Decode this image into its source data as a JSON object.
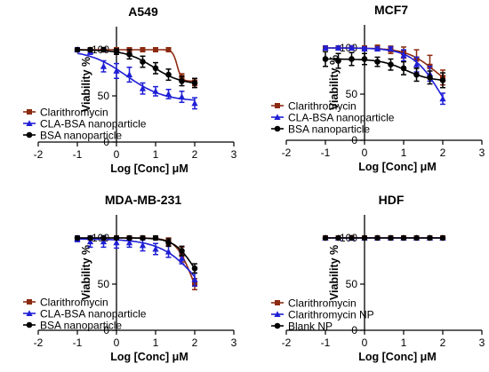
{
  "chart_data": [
    {
      "type": "line",
      "title": "A549",
      "xlabel": "Log [Conc] μM",
      "ylabel": "Viability %",
      "xlim": [
        -2,
        3
      ],
      "ylim": [
        0,
        125
      ],
      "xticks": [
        "-2",
        "-1",
        "0",
        "1",
        "2",
        "3"
      ],
      "yticks": [
        "0",
        "50",
        "100"
      ],
      "legend_position": "bottom-left",
      "x": [
        -1,
        -0.67,
        -0.33,
        0,
        0.33,
        0.67,
        1,
        1.33,
        1.67,
        2
      ],
      "series": [
        {
          "name": "Clarithromycin",
          "color": "#8b2a10",
          "marker": "square",
          "values": [
            100,
            100,
            100,
            100,
            100,
            100,
            100,
            100,
            70,
            65
          ],
          "error": [
            1,
            1,
            1,
            1,
            1,
            1,
            1,
            1,
            4,
            4
          ]
        },
        {
          "name": "CLA-BSA nanoparticle",
          "color": "#1f1fd6",
          "marker": "triangle",
          "values": [
            100,
            98,
            82,
            77,
            73,
            58,
            55,
            52,
            49,
            42
          ],
          "error": [
            2,
            3,
            6,
            8,
            8,
            6,
            5,
            5,
            6,
            6
          ]
        },
        {
          "name": "BSA nanoparticle",
          "color": "#000000",
          "marker": "circle",
          "values": [
            100,
            100,
            100,
            98,
            95,
            87,
            80,
            73,
            66,
            64
          ],
          "error": [
            1,
            1,
            2,
            3,
            5,
            6,
            6,
            6,
            5,
            5
          ]
        }
      ]
    },
    {
      "type": "line",
      "title": "MCF7",
      "xlabel": "Log [Conc] μM",
      "ylabel": "Viability %",
      "xlim": [
        -2,
        3
      ],
      "ylim": [
        0,
        125
      ],
      "xticks": [
        "-2",
        "-1",
        "0",
        "1",
        "2",
        "3"
      ],
      "yticks": [
        "0",
        "50",
        "100"
      ],
      "legend_position": "bottom-left",
      "x": [
        -1,
        -0.67,
        -0.33,
        0,
        0.33,
        0.67,
        1,
        1.33,
        1.67,
        2
      ],
      "series": [
        {
          "name": "Clarithromycin",
          "color": "#8b2a10",
          "marker": "square",
          "values": [
            100,
            100,
            100,
            100,
            100,
            98,
            95,
            88,
            80,
            68
          ],
          "error": [
            2,
            2,
            2,
            2,
            3,
            4,
            6,
            10,
            12,
            8
          ]
        },
        {
          "name": "CLA-BSA nanoparticle",
          "color": "#1f1fd6",
          "marker": "triangle",
          "values": [
            100,
            100,
            100,
            99,
            99,
            99,
            92,
            82,
            72,
            45
          ],
          "error": [
            2,
            2,
            2,
            2,
            2,
            2,
            6,
            8,
            8,
            6
          ]
        },
        {
          "name": "BSA nanoparticle",
          "color": "#000000",
          "marker": "circle",
          "values": [
            88,
            86,
            88,
            88,
            85,
            82,
            78,
            71,
            68,
            65
          ],
          "error": [
            8,
            8,
            7,
            6,
            5,
            6,
            7,
            7,
            7,
            8
          ]
        }
      ]
    },
    {
      "type": "line",
      "title": "MDA-MB-231",
      "xlabel": "Log [Conc] μM",
      "ylabel": "Viability %",
      "xlim": [
        -2,
        3
      ],
      "ylim": [
        0,
        125
      ],
      "xticks": [
        "-2",
        "-1",
        "0",
        "1",
        "2",
        "3"
      ],
      "yticks": [
        "0",
        "50",
        "100"
      ],
      "legend_position": "bottom-left",
      "x": [
        -1,
        -0.67,
        -0.33,
        0,
        0.33,
        0.67,
        1,
        1.33,
        1.67,
        2
      ],
      "series": [
        {
          "name": "Clarithromycin",
          "color": "#8b2a10",
          "marker": "square",
          "values": [
            100,
            100,
            100,
            100,
            100,
            100,
            100,
            96,
            82,
            50
          ],
          "error": [
            1,
            1,
            1,
            1,
            1,
            1,
            2,
            4,
            8,
            6
          ]
        },
        {
          "name": "CLA-BSA nanoparticle",
          "color": "#1f1fd6",
          "marker": "triangle",
          "values": [
            99,
            96,
            96,
            95,
            95,
            92,
            88,
            85,
            78,
            55
          ],
          "error": [
            3,
            6,
            6,
            6,
            5,
            6,
            6,
            6,
            6,
            7
          ]
        },
        {
          "name": "BSA nanoparticle",
          "color": "#000000",
          "marker": "circle",
          "values": [
            100,
            100,
            100,
            100,
            100,
            100,
            100,
            95,
            86,
            67
          ],
          "error": [
            1,
            1,
            1,
            1,
            1,
            1,
            2,
            4,
            5,
            5
          ]
        }
      ]
    },
    {
      "type": "line",
      "title": "HDF",
      "xlabel": "Log [Conc] μM",
      "ylabel": "Viability %",
      "xlim": [
        -2,
        3
      ],
      "ylim": [
        0,
        125
      ],
      "xticks": [
        "-2",
        "-1",
        "0",
        "1",
        "2",
        "3"
      ],
      "yticks": [
        "0",
        "50",
        "100"
      ],
      "legend_position": "bottom-left",
      "x": [
        -1,
        -0.67,
        -0.33,
        0,
        0.33,
        0.67,
        1,
        1.33,
        1.67,
        2
      ],
      "series": [
        {
          "name": "Clarithromycin",
          "color": "#8b2a10",
          "marker": "square",
          "values": [
            100,
            100,
            100,
            100,
            100,
            100,
            100,
            100,
            100,
            100
          ],
          "error": [
            0,
            0,
            0,
            0,
            0,
            0,
            0,
            0,
            0,
            0
          ]
        },
        {
          "name": "Clarithromycin NP",
          "color": "#1f1fd6",
          "marker": "triangle",
          "values": [
            100,
            100,
            100,
            100,
            100,
            100,
            100,
            100,
            100,
            100
          ],
          "error": [
            0,
            0,
            0,
            0,
            0,
            0,
            0,
            0,
            0,
            0
          ]
        },
        {
          "name": "Blank NP",
          "color": "#000000",
          "marker": "circle",
          "values": [
            100,
            100,
            100,
            100,
            100,
            100,
            100,
            100,
            100,
            100
          ],
          "error": [
            0,
            0,
            0,
            0,
            0,
            0,
            0,
            0,
            0,
            0
          ]
        }
      ]
    }
  ]
}
